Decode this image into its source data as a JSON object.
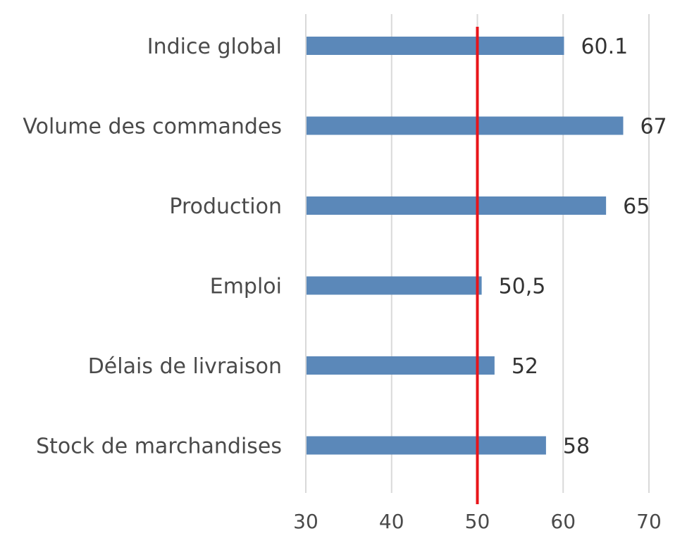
{
  "chart_data": {
    "type": "bar",
    "orientation": "horizontal",
    "categories": [
      "Indice global",
      "Volume des commandes",
      "Production",
      "Emploi",
      "Délais de livraison",
      "Stock de marchandises"
    ],
    "values": [
      60.1,
      67,
      65,
      50.5,
      52,
      58
    ],
    "value_labels": [
      "60.1",
      "67",
      "65",
      "50,5",
      "52",
      "58"
    ],
    "xlim": [
      30,
      70
    ],
    "xticks": [
      30,
      40,
      50,
      60,
      70
    ],
    "reference_line": 50,
    "grid": "vertical",
    "legend": "none",
    "colors": {
      "bar": "#5b88b9",
      "reference": "#e8141a",
      "grid": "#d9d9d9"
    }
  }
}
